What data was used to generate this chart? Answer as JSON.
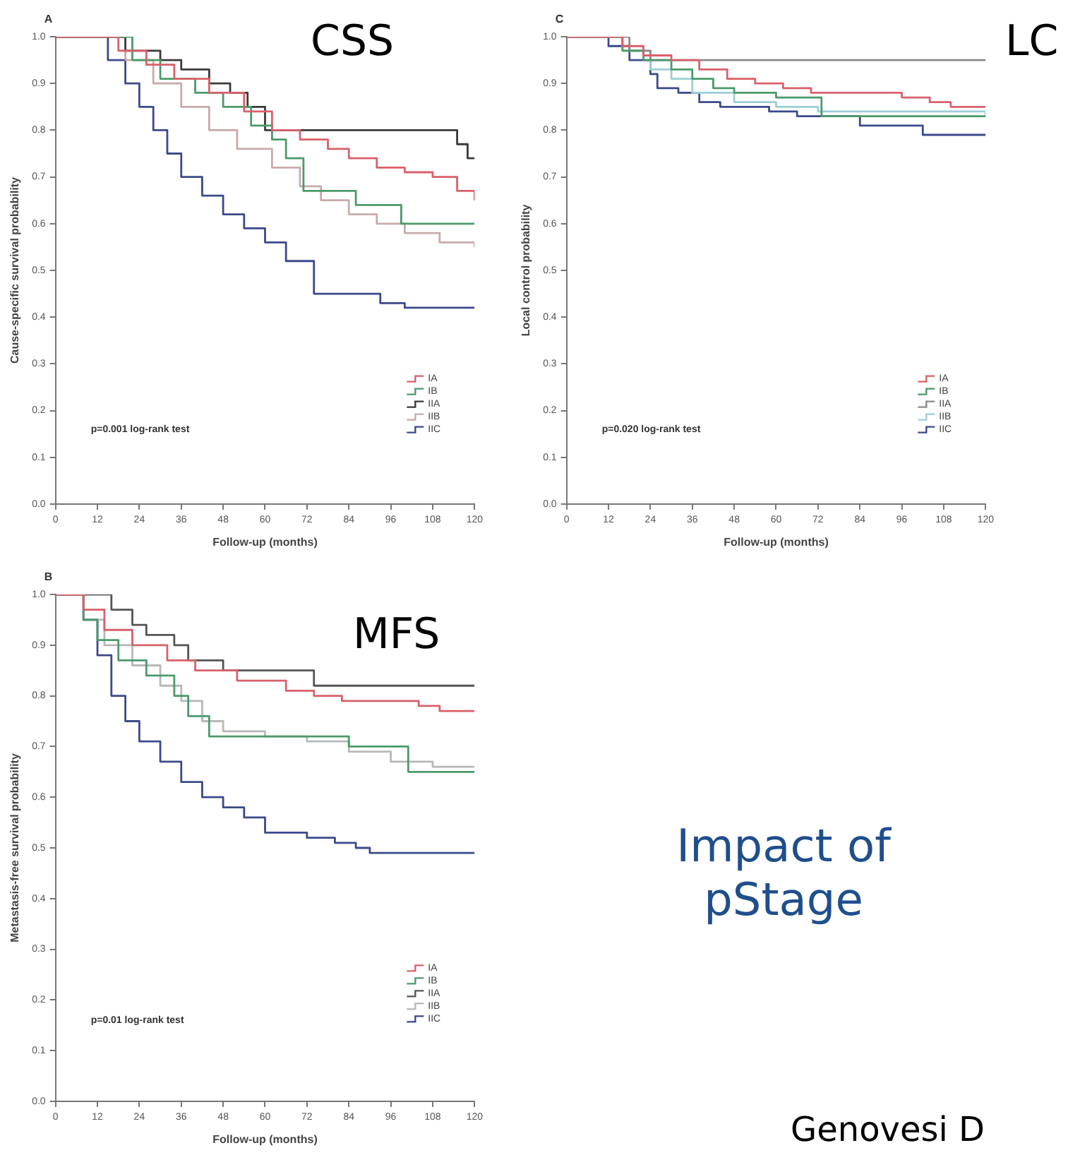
{
  "chart_data": [
    {
      "type": "step",
      "title": "CSS",
      "subtitle": "A",
      "xlabel": "Follow-up (months)",
      "ylabel": "Cause-specific survival probability",
      "annotations": [
        "p=0.001 log-rank test"
      ],
      "legend": "bottom right",
      "xlim": [
        0,
        120
      ],
      "xticks": [
        0,
        12,
        24,
        36,
        48,
        60,
        72,
        84,
        96,
        108,
        120
      ],
      "ylim": [
        0,
        1
      ],
      "yticks": [
        {
          "value": 0,
          "label": "0.0"
        },
        {
          "value": 0.1,
          "label": "0.1"
        },
        {
          "value": 0.2,
          "label": "0.2"
        },
        {
          "value": 0.3,
          "label": "0.3"
        },
        {
          "value": 0.4,
          "label": "0.4"
        },
        {
          "value": 0.5,
          "label": "0.5"
        },
        {
          "value": 0.6,
          "label": "0.6"
        },
        {
          "value": 0.7,
          "label": "0.7"
        },
        {
          "value": 0.8,
          "label": "0.8"
        },
        {
          "value": 0.9,
          "label": "0.9"
        },
        {
          "value": 1,
          "label": "1.0"
        }
      ],
      "series": [
        {
          "name": "IA",
          "color": "#d9606a",
          "x": [
            0,
            18,
            26,
            34,
            44,
            54,
            62,
            70,
            78,
            84,
            92,
            100,
            108,
            115,
            120
          ],
          "values": [
            1,
            0.97,
            0.94,
            0.91,
            0.88,
            0.84,
            0.8,
            0.78,
            0.76,
            0.74,
            0.72,
            0.71,
            0.7,
            0.67,
            0.65
          ]
        },
        {
          "name": "IB",
          "color": "#4a9a6a",
          "x": [
            0,
            22,
            30,
            40,
            48,
            56,
            62,
            66,
            71,
            86,
            99,
            120
          ],
          "values": [
            1,
            0.95,
            0.91,
            0.88,
            0.85,
            0.81,
            0.78,
            0.74,
            0.67,
            0.64,
            0.6,
            0.6
          ]
        },
        {
          "name": "IIA",
          "color": "#3a3a3a",
          "x": [
            0,
            20,
            30,
            36,
            44,
            50,
            55,
            60,
            112,
            115,
            118,
            120
          ],
          "values": [
            1,
            0.97,
            0.95,
            0.93,
            0.9,
            0.88,
            0.85,
            0.8,
            0.8,
            0.77,
            0.74,
            0.74
          ]
        },
        {
          "name": "IIB",
          "color": "#c8aaaa",
          "x": [
            0,
            20,
            28,
            36,
            44,
            52,
            62,
            70,
            76,
            84,
            92,
            100,
            110,
            120
          ],
          "values": [
            1,
            0.95,
            0.9,
            0.85,
            0.8,
            0.76,
            0.72,
            0.68,
            0.65,
            0.62,
            0.6,
            0.58,
            0.56,
            0.55
          ]
        },
        {
          "name": "IIC",
          "color": "#3b4a8a",
          "x": [
            0,
            15,
            20,
            24,
            28,
            32,
            36,
            42,
            48,
            54,
            60,
            66,
            74,
            93,
            100,
            120
          ],
          "values": [
            1,
            0.95,
            0.9,
            0.85,
            0.8,
            0.75,
            0.7,
            0.66,
            0.62,
            0.59,
            0.56,
            0.52,
            0.45,
            0.43,
            0.42,
            0.42
          ]
        }
      ]
    },
    {
      "type": "step",
      "title": "LC",
      "subtitle": "C",
      "xlabel": "Follow-up (months)",
      "ylabel": "Local control probability",
      "annotations": [
        "p=0.020 log-rank test"
      ],
      "legend": "bottom right",
      "xlim": [
        0,
        120
      ],
      "xticks": [
        0,
        12,
        24,
        36,
        48,
        60,
        72,
        84,
        96,
        108,
        120
      ],
      "ylim": [
        0,
        1
      ],
      "yticks": [
        {
          "value": 0,
          "label": "0.0"
        },
        {
          "value": 0.1,
          "label": "0.1"
        },
        {
          "value": 0.2,
          "label": "0.2"
        },
        {
          "value": 0.3,
          "label": "0.3"
        },
        {
          "value": 0.4,
          "label": "0.4"
        },
        {
          "value": 0.5,
          "label": "0.5"
        },
        {
          "value": 0.6,
          "label": "0.6"
        },
        {
          "value": 0.7,
          "label": "0.7"
        },
        {
          "value": 0.8,
          "label": "0.8"
        },
        {
          "value": 0.9,
          "label": "0.9"
        },
        {
          "value": 1,
          "label": "1.0"
        }
      ],
      "series": [
        {
          "name": "IA",
          "color": "#d9606a",
          "x": [
            0,
            16,
            22,
            30,
            38,
            46,
            54,
            62,
            70,
            96,
            104,
            110,
            120
          ],
          "values": [
            1,
            0.98,
            0.96,
            0.95,
            0.93,
            0.91,
            0.9,
            0.89,
            0.88,
            0.87,
            0.86,
            0.85,
            0.85
          ]
        },
        {
          "name": "IB",
          "color": "#4a9a6a",
          "x": [
            0,
            16,
            22,
            30,
            36,
            42,
            48,
            60,
            73,
            120
          ],
          "values": [
            1,
            0.97,
            0.95,
            0.93,
            0.91,
            0.89,
            0.88,
            0.87,
            0.83,
            0.83
          ]
        },
        {
          "name": "IIA",
          "color": "#8a8a8a",
          "x": [
            0,
            18,
            24,
            120
          ],
          "values": [
            1,
            0.97,
            0.95,
            0.95
          ]
        },
        {
          "name": "IIB",
          "color": "#9ccfd8",
          "x": [
            0,
            16,
            24,
            30,
            36,
            48,
            60,
            72,
            120
          ],
          "values": [
            1,
            0.97,
            0.93,
            0.91,
            0.88,
            0.86,
            0.85,
            0.84,
            0.83
          ]
        },
        {
          "name": "IIC",
          "color": "#3b4a8a",
          "x": [
            0,
            12,
            18,
            24,
            26,
            32,
            38,
            44,
            58,
            66,
            84,
            102,
            120
          ],
          "values": [
            1,
            0.98,
            0.95,
            0.92,
            0.89,
            0.88,
            0.86,
            0.85,
            0.84,
            0.83,
            0.81,
            0.79,
            0.79
          ]
        }
      ]
    },
    {
      "type": "step",
      "title": "MFS",
      "subtitle": "B",
      "xlabel": "Follow-up (months)",
      "ylabel": "Metastasis-free survival probability",
      "annotations": [
        "p=0.01 log-rank test"
      ],
      "legend": "bottom right",
      "xlim": [
        0,
        120
      ],
      "xticks": [
        0,
        12,
        24,
        36,
        48,
        60,
        72,
        84,
        96,
        108,
        120
      ],
      "ylim": [
        0,
        1
      ],
      "yticks": [
        {
          "value": 0,
          "label": "0.0"
        },
        {
          "value": 0.1,
          "label": "0.1"
        },
        {
          "value": 0.2,
          "label": "0.2"
        },
        {
          "value": 0.3,
          "label": "0.3"
        },
        {
          "value": 0.4,
          "label": "0.4"
        },
        {
          "value": 0.5,
          "label": "0.5"
        },
        {
          "value": 0.6,
          "label": "0.6"
        },
        {
          "value": 0.7,
          "label": "0.7"
        },
        {
          "value": 0.8,
          "label": "0.8"
        },
        {
          "value": 0.9,
          "label": "0.9"
        },
        {
          "value": 1,
          "label": "1.0"
        }
      ],
      "series": [
        {
          "name": "IA",
          "color": "#d9606a",
          "x": [
            0,
            8,
            14,
            22,
            32,
            40,
            52,
            66,
            74,
            82,
            104,
            110,
            120
          ],
          "values": [
            1,
            0.97,
            0.93,
            0.9,
            0.87,
            0.85,
            0.83,
            0.81,
            0.8,
            0.79,
            0.78,
            0.77,
            0.77
          ]
        },
        {
          "name": "IB",
          "color": "#4a9a6a",
          "x": [
            0,
            8,
            12,
            18,
            26,
            34,
            38,
            44,
            84,
            101,
            120
          ],
          "values": [
            1,
            0.95,
            0.91,
            0.87,
            0.84,
            0.8,
            0.76,
            0.72,
            0.7,
            0.65,
            0.65
          ]
        },
        {
          "name": "IIA",
          "color": "#555555",
          "x": [
            0,
            16,
            22,
            26,
            34,
            38,
            48,
            74,
            120
          ],
          "values": [
            1,
            0.97,
            0.94,
            0.92,
            0.9,
            0.87,
            0.85,
            0.82,
            0.82
          ]
        },
        {
          "name": "IIB",
          "color": "#b8b8b8",
          "x": [
            0,
            8,
            14,
            22,
            30,
            36,
            42,
            48,
            60,
            72,
            84,
            96,
            108,
            120
          ],
          "values": [
            1,
            0.95,
            0.9,
            0.86,
            0.82,
            0.79,
            0.75,
            0.73,
            0.72,
            0.71,
            0.69,
            0.67,
            0.66,
            0.66
          ]
        },
        {
          "name": "IIC",
          "color": "#3b4a8a",
          "x": [
            0,
            8,
            12,
            16,
            20,
            24,
            30,
            36,
            42,
            48,
            54,
            60,
            72,
            80,
            86,
            90,
            120
          ],
          "values": [
            1,
            0.95,
            0.88,
            0.8,
            0.75,
            0.71,
            0.67,
            0.63,
            0.6,
            0.58,
            0.56,
            0.53,
            0.52,
            0.51,
            0.5,
            0.49,
            0.49
          ]
        }
      ]
    },
    {
      "type": "other",
      "annotations": [
        "Impact of pStage",
        "Genovesi D"
      ]
    }
  ]
}
